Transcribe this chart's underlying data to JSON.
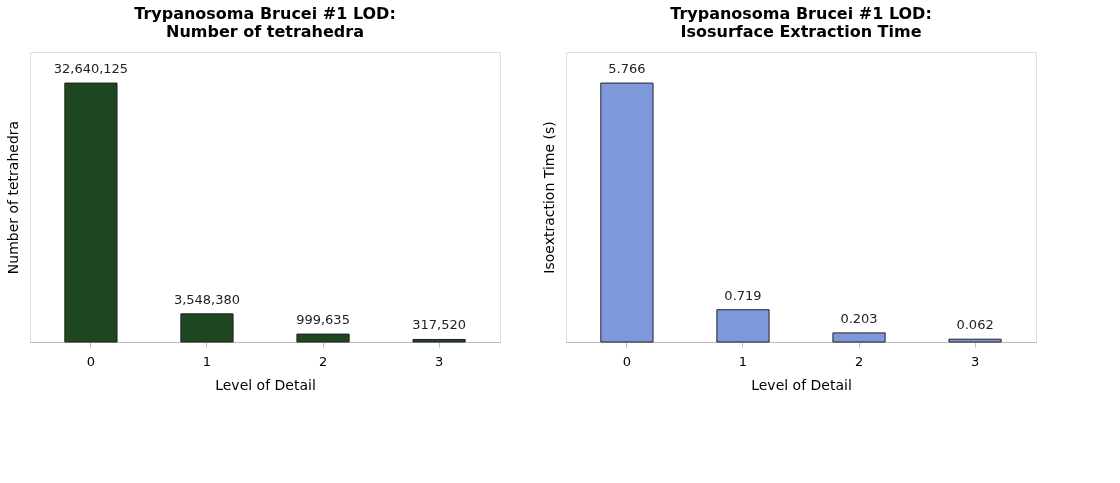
{
  "chart_data": [
    {
      "type": "bar",
      "title": "Trypanosoma Brucei #1 LOD:\nNumber of tetrahedra",
      "xlabel": "Level of Detail",
      "ylabel": "Number of tetrahedra",
      "categories": [
        "0",
        "1",
        "2",
        "3"
      ],
      "series": [
        {
          "color": "#1e4620",
          "values": [
            32640125,
            3548380,
            999635,
            317520
          ],
          "value_labels": [
            "32,640,125",
            "3,548,380",
            "999,635",
            "317,520"
          ]
        }
      ],
      "tick_labels": "x"
    },
    {
      "type": "bar",
      "title": "Trypanosoma Brucei #1 LOD:\nIsosurface Extraction Time",
      "xlabel": "Level of Detail",
      "ylabel": "Isoextraction Time (s)",
      "categories": [
        "0",
        "1",
        "2",
        "3"
      ],
      "series": [
        {
          "color": "#7f97db",
          "values": [
            5.766,
            0.719,
            0.203,
            0.062
          ]
        }
      ],
      "data_labels": true,
      "tick_labels": "x"
    }
  ]
}
